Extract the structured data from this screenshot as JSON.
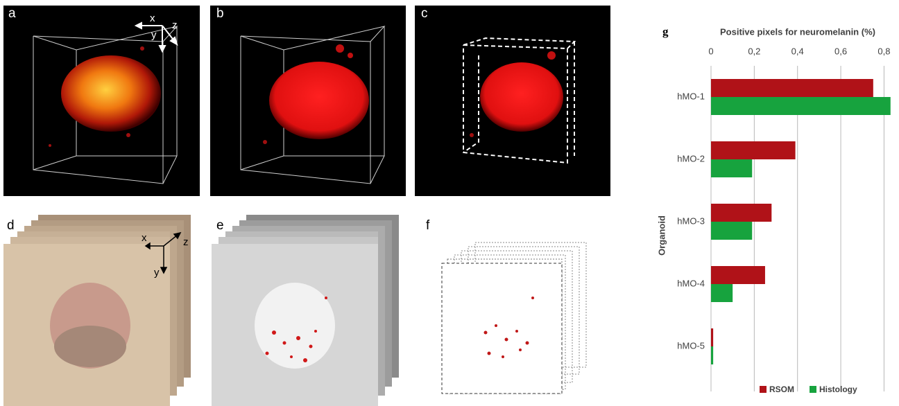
{
  "panels": [
    {
      "label": "a",
      "axes": [
        "x",
        "y",
        "z"
      ]
    },
    {
      "label": "b"
    },
    {
      "label": "c"
    },
    {
      "label": "d",
      "axes": [
        "x",
        "y",
        "z"
      ]
    },
    {
      "label": "e"
    },
    {
      "label": "f"
    },
    {
      "label": "g"
    }
  ],
  "chart_data": {
    "type": "barh",
    "title": "Positive pixels for neuromelanin (%)",
    "y_label": "Organoid",
    "categories": [
      "hMO-1",
      "hMO-2",
      "hMO-3",
      "hMO-4",
      "hMO-5"
    ],
    "series": [
      {
        "name": "RSOM",
        "color": "#b01218",
        "values": [
          0.75,
          0.39,
          0.28,
          0.25,
          0.01
        ]
      },
      {
        "name": "Histology",
        "color": "#17a33e",
        "values": [
          0.83,
          0.19,
          0.19,
          0.1,
          0.01
        ]
      }
    ],
    "xlim": [
      0,
      0.85
    ],
    "xticks": [
      0,
      {
        "value": 0.2,
        "label": "0,2"
      },
      {
        "value": 0.4,
        "label": "0,4"
      },
      {
        "value": 0.6,
        "label": "0,6"
      },
      {
        "value": 0.8,
        "label": "0,8"
      }
    ],
    "grid": true,
    "legend": "bottom"
  }
}
